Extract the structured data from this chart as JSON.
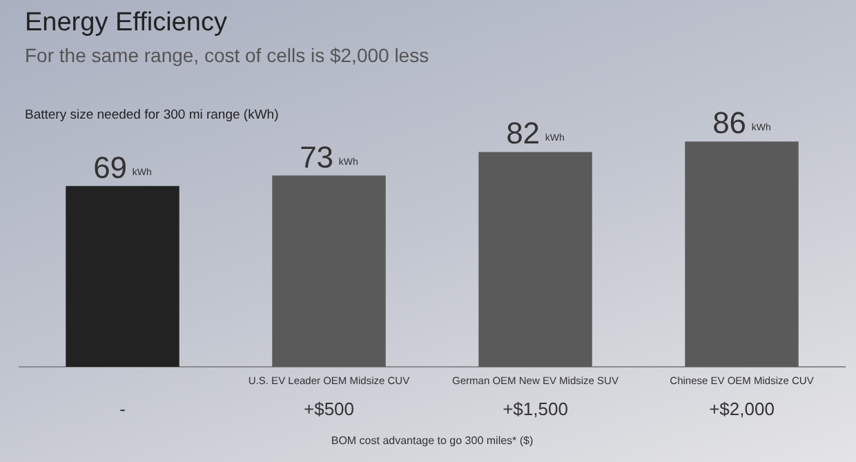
{
  "chart_data": {
    "type": "bar",
    "title": "Energy Efficiency",
    "subtitle": "For the same range, cost of cells is $2,000 less",
    "ylabel": "Battery size needed for 300 mi range (kWh)",
    "categories": [
      null,
      "U.S. EV Leader OEM Midsize CUV",
      "German OEM New EV Midsize SUV",
      "Chinese EV OEM Midsize CUV"
    ],
    "values": [
      69,
      73,
      82,
      86
    ],
    "colors": [
      "#222222",
      "#5a5a5a",
      "#5a5a5a",
      "#5a5a5a"
    ],
    "value_labels": [
      "69 kWh",
      "73 kWh",
      "82 kWh",
      "86 kWh"
    ],
    "grid": false,
    "legend": false,
    "annotations": [
      "-",
      "+$500",
      "+$1,500",
      "+$2,000",
      "BOM cost advantage to go 300 miles* ($)"
    ]
  }
}
